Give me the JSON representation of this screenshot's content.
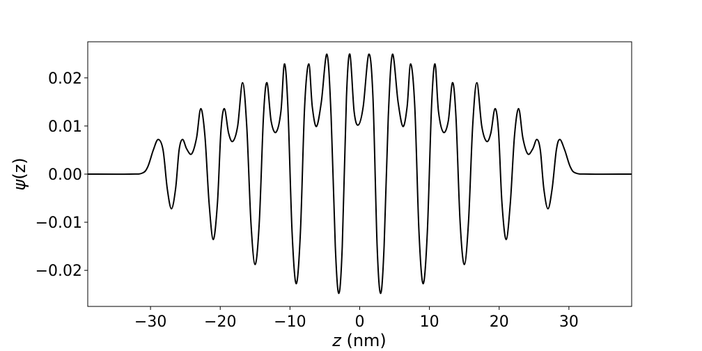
{
  "chart_data": {
    "type": "line",
    "title": "",
    "xlabel": {
      "italic": "z",
      "rest": " (nm)"
    },
    "ylabel": {
      "italic": "ψ",
      "rest": "(z)"
    },
    "xlim": [
      -39,
      39
    ],
    "ylim": [
      -0.0275,
      0.0275
    ],
    "grid": false,
    "line_color": "#000000",
    "x_ticks": [
      {
        "value": -30,
        "label": "−30"
      },
      {
        "value": -20,
        "label": "−20"
      },
      {
        "value": -10,
        "label": "−10"
      },
      {
        "value": 0,
        "label": "0"
      },
      {
        "value": 10,
        "label": "10"
      },
      {
        "value": 20,
        "label": "20"
      },
      {
        "value": 30,
        "label": "30"
      }
    ],
    "y_ticks": [
      {
        "value": 0.02,
        "label": "0.02"
      },
      {
        "value": 0.01,
        "label": "0.01"
      },
      {
        "value": 0.0,
        "label": "0.00"
      },
      {
        "value": -0.01,
        "label": "−0.01"
      },
      {
        "value": -0.02,
        "label": "−0.02"
      }
    ],
    "series": [
      {
        "name": "",
        "points": [
          [
            -39,
            0
          ],
          [
            -33,
            0
          ],
          [
            -31.2,
            0.0002
          ],
          [
            -30.4,
            0.0015
          ],
          [
            -29.6,
            0.005
          ],
          [
            -28.9,
            0.0072
          ],
          [
            -28.2,
            0.005
          ],
          [
            -27.6,
            -0.003
          ],
          [
            -27.0,
            -0.0072
          ],
          [
            -26.4,
            -0.003
          ],
          [
            -25.9,
            0.005
          ],
          [
            -25.4,
            0.0072
          ],
          [
            -24.8,
            0.0052
          ],
          [
            -24.1,
            0.0042
          ],
          [
            -23.4,
            0.0075
          ],
          [
            -22.8,
            0.0136
          ],
          [
            -22.2,
            0.008
          ],
          [
            -21.6,
            -0.006
          ],
          [
            -21.0,
            -0.0136
          ],
          [
            -20.4,
            -0.006
          ],
          [
            -19.9,
            0.009
          ],
          [
            -19.4,
            0.0136
          ],
          [
            -18.8,
            0.0085
          ],
          [
            -18.2,
            0.0068
          ],
          [
            -17.5,
            0.01
          ],
          [
            -16.8,
            0.019
          ],
          [
            -16.2,
            0.01
          ],
          [
            -15.6,
            -0.01
          ],
          [
            -15.0,
            -0.0188
          ],
          [
            -14.4,
            -0.01
          ],
          [
            -13.8,
            0.012
          ],
          [
            -13.3,
            0.019
          ],
          [
            -12.7,
            0.011
          ],
          [
            -12.0,
            0.0087
          ],
          [
            -11.3,
            0.013
          ],
          [
            -10.8,
            0.0229
          ],
          [
            -10.3,
            0.014
          ],
          [
            -9.7,
            -0.012
          ],
          [
            -9.1,
            -0.0228
          ],
          [
            -8.5,
            -0.012
          ],
          [
            -7.9,
            0.014
          ],
          [
            -7.3,
            0.0229
          ],
          [
            -6.8,
            0.014
          ],
          [
            -6.2,
            0.0099
          ],
          [
            -5.5,
            0.015
          ],
          [
            -4.7,
            0.0249
          ],
          [
            -4.1,
            0.012
          ],
          [
            -3.5,
            -0.015
          ],
          [
            -3.0,
            -0.0248
          ],
          [
            -2.5,
            -0.015
          ],
          [
            -1.9,
            0.016
          ],
          [
            -1.4,
            0.0249
          ],
          [
            -0.8,
            0.013
          ],
          [
            -0.2,
            0.0102
          ],
          [
            0.5,
            0.014
          ],
          [
            1.3,
            0.0249
          ],
          [
            1.9,
            0.016
          ],
          [
            2.5,
            -0.015
          ],
          [
            3.0,
            -0.0248
          ],
          [
            3.5,
            -0.015
          ],
          [
            4.1,
            0.012
          ],
          [
            4.7,
            0.0249
          ],
          [
            5.5,
            0.015
          ],
          [
            6.2,
            0.0099
          ],
          [
            6.8,
            0.014
          ],
          [
            7.3,
            0.0229
          ],
          [
            7.9,
            0.014
          ],
          [
            8.5,
            -0.012
          ],
          [
            9.1,
            -0.0228
          ],
          [
            9.7,
            -0.012
          ],
          [
            10.3,
            0.014
          ],
          [
            10.8,
            0.0229
          ],
          [
            11.3,
            0.013
          ],
          [
            12.0,
            0.0087
          ],
          [
            12.7,
            0.011
          ],
          [
            13.3,
            0.019
          ],
          [
            13.8,
            0.012
          ],
          [
            14.4,
            -0.01
          ],
          [
            15.0,
            -0.0188
          ],
          [
            15.6,
            -0.01
          ],
          [
            16.2,
            0.01
          ],
          [
            16.8,
            0.019
          ],
          [
            17.5,
            0.01
          ],
          [
            18.2,
            0.0068
          ],
          [
            18.8,
            0.0085
          ],
          [
            19.4,
            0.0136
          ],
          [
            19.9,
            0.009
          ],
          [
            20.4,
            -0.006
          ],
          [
            21.0,
            -0.0136
          ],
          [
            21.6,
            -0.006
          ],
          [
            22.2,
            0.008
          ],
          [
            22.8,
            0.0136
          ],
          [
            23.4,
            0.0075
          ],
          [
            24.1,
            0.0042
          ],
          [
            24.8,
            0.0052
          ],
          [
            25.4,
            0.0072
          ],
          [
            25.9,
            0.005
          ],
          [
            26.4,
            -0.003
          ],
          [
            27.0,
            -0.0072
          ],
          [
            27.6,
            -0.003
          ],
          [
            28.2,
            0.005
          ],
          [
            28.7,
            0.0072
          ],
          [
            29.4,
            0.005
          ],
          [
            30.2,
            0.0015
          ],
          [
            31.0,
            0.0002
          ],
          [
            33,
            0
          ],
          [
            39,
            0
          ]
        ]
      }
    ]
  }
}
